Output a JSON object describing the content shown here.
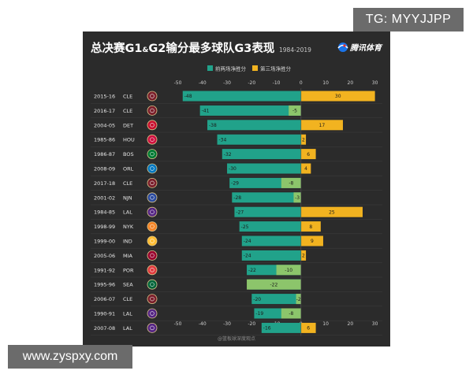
{
  "watermarks": {
    "top": "TG: MYYJJPP",
    "bottom": "www.zyspxy.com"
  },
  "brand": {
    "name": "腾讯体育"
  },
  "colors": {
    "background": "#2b2b2b",
    "loss_bar": "#21a28a",
    "game3_positive": "#f2b320",
    "game3_negative": "#8cc56b",
    "text": "#e6e6e6",
    "grid": "#3f3f3f"
  },
  "chart_data": {
    "type": "bar",
    "orientation": "horizontal",
    "title": "总决赛G1&G2输分最多球队G3表现",
    "title_parts": [
      "总决赛G1",
      "&",
      "G2输分最多球队G3表现"
    ],
    "subtitle": "1984-2019",
    "legend": {
      "placement": "top",
      "entries": [
        "前两场净胜分",
        "第三场净胜分"
      ]
    },
    "x_ticks": [
      -50,
      -40,
      -30,
      -20,
      -10,
      0,
      10,
      20,
      30
    ],
    "xlim": [
      -54,
      33
    ],
    "grid": false,
    "categories": [
      {
        "season": "2015-16",
        "team": "CLE",
        "logo_icon": "cavaliers-logo-icon",
        "logo_color": "#7a1f2b"
      },
      {
        "season": "2016-17",
        "team": "CLE",
        "logo_icon": "cavaliers-logo-icon",
        "logo_color": "#7a1f2b"
      },
      {
        "season": "2004-05",
        "team": "DET",
        "logo_icon": "pistons-logo-icon",
        "logo_color": "#c8102e"
      },
      {
        "season": "1985-86",
        "team": "HOU",
        "logo_icon": "rockets-logo-icon",
        "logo_color": "#ce1141"
      },
      {
        "season": "1986-87",
        "team": "BOS",
        "logo_icon": "celtics-logo-icon",
        "logo_color": "#007a33"
      },
      {
        "season": "2008-09",
        "team": "ORL",
        "logo_icon": "magic-logo-icon",
        "logo_color": "#0077c0"
      },
      {
        "season": "2017-18",
        "team": "CLE",
        "logo_icon": "cavaliers-logo-icon",
        "logo_color": "#7a1f2b"
      },
      {
        "season": "2001-02",
        "team": "NJN",
        "logo_icon": "nets-logo-icon",
        "logo_color": "#2a4a9e"
      },
      {
        "season": "1984-85",
        "team": "LAL",
        "logo_icon": "lakers-logo-icon",
        "logo_color": "#552583"
      },
      {
        "season": "1998-99",
        "team": "NYK",
        "logo_icon": "knicks-logo-icon",
        "logo_color": "#f58426"
      },
      {
        "season": "1999-00",
        "team": "IND",
        "logo_icon": "pacers-logo-icon",
        "logo_color": "#fdbb30"
      },
      {
        "season": "2005-06",
        "team": "MIA",
        "logo_icon": "heat-logo-icon",
        "logo_color": "#98002e"
      },
      {
        "season": "1991-92",
        "team": "POR",
        "logo_icon": "trail-blazers-logo-icon",
        "logo_color": "#e03a3e"
      },
      {
        "season": "1995-96",
        "team": "SEA",
        "logo_icon": "supersonics-logo-icon",
        "logo_color": "#00653a"
      },
      {
        "season": "2006-07",
        "team": "CLE",
        "logo_icon": "cavaliers-logo-icon",
        "logo_color": "#7a1f2b"
      },
      {
        "season": "1990-91",
        "team": "LAL",
        "logo_icon": "lakers-logo-icon",
        "logo_color": "#552583"
      },
      {
        "season": "2007-08",
        "team": "LAL",
        "logo_icon": "lakers-logo-icon",
        "logo_color": "#552583"
      }
    ],
    "series": [
      {
        "name": "前两场净胜分",
        "values": [
          -48,
          -41,
          -38,
          -34,
          -32,
          -30,
          -29,
          -28,
          -27,
          -25,
          -24,
          -24,
          -22,
          -21,
          -20,
          -19,
          -16
        ]
      },
      {
        "name": "第三场净胜分",
        "values": [
          30,
          -5,
          17,
          2,
          6,
          4,
          -8,
          -3,
          25,
          8,
          9,
          2,
          -10,
          -22,
          -2,
          -8,
          6
        ]
      }
    ],
    "footer": "@篮板球深度观点"
  }
}
